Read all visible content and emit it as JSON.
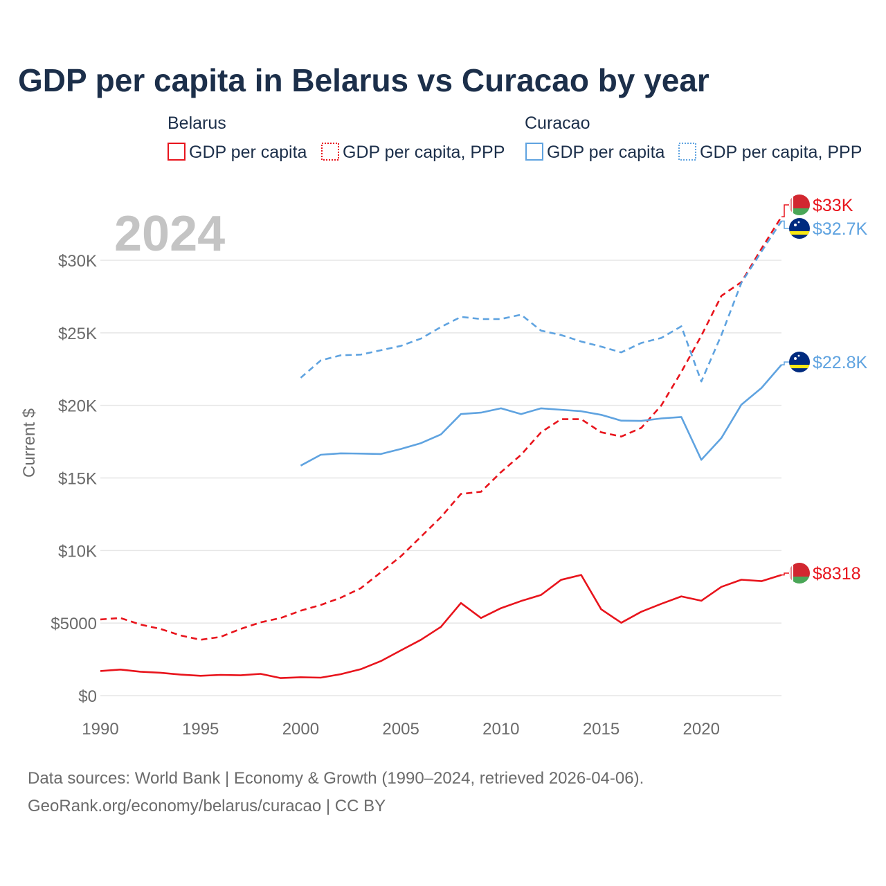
{
  "title": "GDP per capita in Belarus vs Curacao by year",
  "watermark_year": "2024",
  "legend": {
    "groups": [
      {
        "name": "Belarus",
        "items": [
          {
            "label": "GDP per capita",
            "color": "#e8141c",
            "style": "solid"
          },
          {
            "label": "GDP per capita, PPP",
            "color": "#e8141c",
            "style": "dotted"
          }
        ]
      },
      {
        "name": "Curacao",
        "items": [
          {
            "label": "GDP per capita",
            "color": "#5fa3e0",
            "style": "solid"
          },
          {
            "label": "GDP per capita, PPP",
            "color": "#5fa3e0",
            "style": "dotted"
          }
        ]
      }
    ]
  },
  "footer": {
    "line1": "Data sources: World Bank | Economy & Growth (1990–2024, retrieved 2026-04-06).",
    "line2": "GeoRank.org/economy/belarus/curacao | CC BY"
  },
  "chart_data": {
    "type": "line",
    "title": "GDP per capita in Belarus vs Curacao by year",
    "xlabel": "",
    "ylabel": "Current $",
    "xlim": [
      1990,
      2024
    ],
    "ylim": [
      0,
      33000
    ],
    "x_ticks": [
      1990,
      1995,
      2000,
      2005,
      2010,
      2015,
      2020
    ],
    "x_tick_labels": [
      "1990",
      "1995",
      "2000",
      "2005",
      "2010",
      "2015",
      "2020"
    ],
    "y_ticks": [
      0,
      5000,
      10000,
      15000,
      20000,
      25000,
      30000
    ],
    "y_tick_labels": [
      "$0",
      "$5000",
      "$10K",
      "$15K",
      "$20K",
      "$25K",
      "$30K"
    ],
    "grid": true,
    "series": [
      {
        "name": "Belarus GDP per capita",
        "country": "Belarus",
        "color": "#e8141c",
        "dash": false,
        "end_label": "$8318",
        "x": [
          1990,
          1991,
          1992,
          1993,
          1994,
          1995,
          1996,
          1997,
          1998,
          1999,
          2000,
          2001,
          2002,
          2003,
          2004,
          2005,
          2006,
          2007,
          2008,
          2009,
          2010,
          2011,
          2012,
          2013,
          2014,
          2015,
          2016,
          2017,
          2018,
          2019,
          2020,
          2021,
          2022,
          2023,
          2024
        ],
        "values": [
          1700,
          1800,
          1650,
          1580,
          1450,
          1370,
          1430,
          1400,
          1500,
          1210,
          1270,
          1240,
          1480,
          1820,
          2380,
          3120,
          3850,
          4740,
          6380,
          5350,
          6030,
          6520,
          6940,
          7980,
          8320,
          5950,
          5020,
          5780,
          6330,
          6840,
          6540,
          7500,
          7990,
          7890,
          8318
        ]
      },
      {
        "name": "Belarus GDP per capita, PPP",
        "country": "Belarus",
        "color": "#e8141c",
        "dash": true,
        "end_label": "$33K",
        "x": [
          1990,
          1991,
          1992,
          1993,
          1994,
          1995,
          1996,
          1997,
          1998,
          1999,
          2000,
          2001,
          2002,
          2003,
          2004,
          2005,
          2006,
          2007,
          2008,
          2009,
          2010,
          2011,
          2012,
          2013,
          2014,
          2015,
          2016,
          2017,
          2018,
          2019,
          2020,
          2021,
          2022,
          2023,
          2024
        ],
        "values": [
          5250,
          5350,
          4900,
          4600,
          4150,
          3850,
          4050,
          4600,
          5050,
          5350,
          5850,
          6250,
          6750,
          7400,
          8500,
          9600,
          10950,
          12300,
          13900,
          14050,
          15400,
          16600,
          18150,
          19050,
          19050,
          18150,
          17850,
          18450,
          20000,
          22300,
          24800,
          27550,
          28500,
          30800,
          33000
        ]
      },
      {
        "name": "Curacao GDP per capita",
        "country": "Curacao",
        "color": "#5fa3e0",
        "dash": false,
        "end_label": "$22.8K",
        "x": [
          2000,
          2001,
          2002,
          2003,
          2004,
          2005,
          2006,
          2007,
          2008,
          2009,
          2010,
          2011,
          2012,
          2013,
          2014,
          2015,
          2016,
          2017,
          2018,
          2019,
          2020,
          2021,
          2022,
          2023,
          2024
        ],
        "values": [
          15850,
          16600,
          16700,
          16680,
          16650,
          17000,
          17400,
          18000,
          19400,
          19500,
          19800,
          19400,
          19800,
          19700,
          19600,
          19350,
          18950,
          18930,
          19100,
          19200,
          16250,
          17750,
          20050,
          21200,
          22800
        ]
      },
      {
        "name": "Curacao GDP per capita, PPP",
        "country": "Curacao",
        "color": "#5fa3e0",
        "dash": true,
        "end_label": "$32.7K",
        "x": [
          2000,
          2001,
          2002,
          2003,
          2004,
          2005,
          2006,
          2007,
          2008,
          2009,
          2010,
          2011,
          2012,
          2013,
          2014,
          2015,
          2016,
          2017,
          2018,
          2019,
          2020,
          2021,
          2022,
          2023,
          2024
        ],
        "values": [
          21900,
          23100,
          23450,
          23500,
          23800,
          24100,
          24600,
          25400,
          26100,
          25950,
          25950,
          26250,
          25150,
          24850,
          24400,
          24050,
          23650,
          24300,
          24650,
          25450,
          21650,
          24850,
          28450,
          30600,
          32700
        ]
      }
    ]
  }
}
